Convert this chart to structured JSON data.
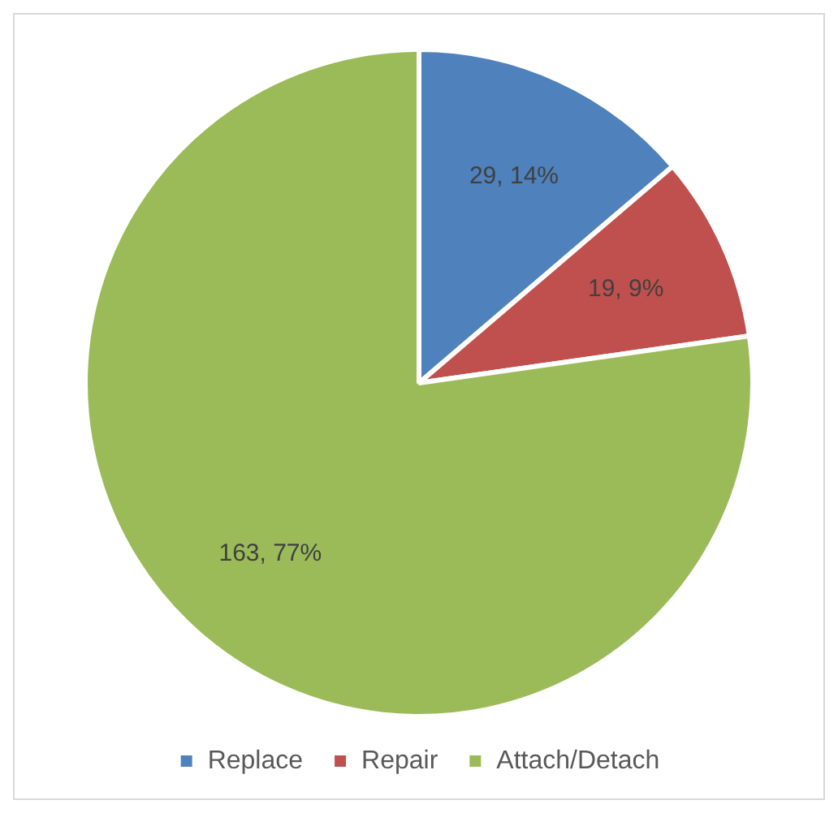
{
  "chart_data": {
    "type": "pie",
    "categories": [
      "Replace",
      "Repair",
      "Attach/Detach"
    ],
    "values": [
      29,
      19,
      163
    ],
    "colors": [
      "#4f81bd",
      "#c0504d",
      "#9bbb59"
    ],
    "value_labels": [
      "29, 14%",
      "19, 9%",
      "163, 77%"
    ],
    "legend": "bottom"
  }
}
